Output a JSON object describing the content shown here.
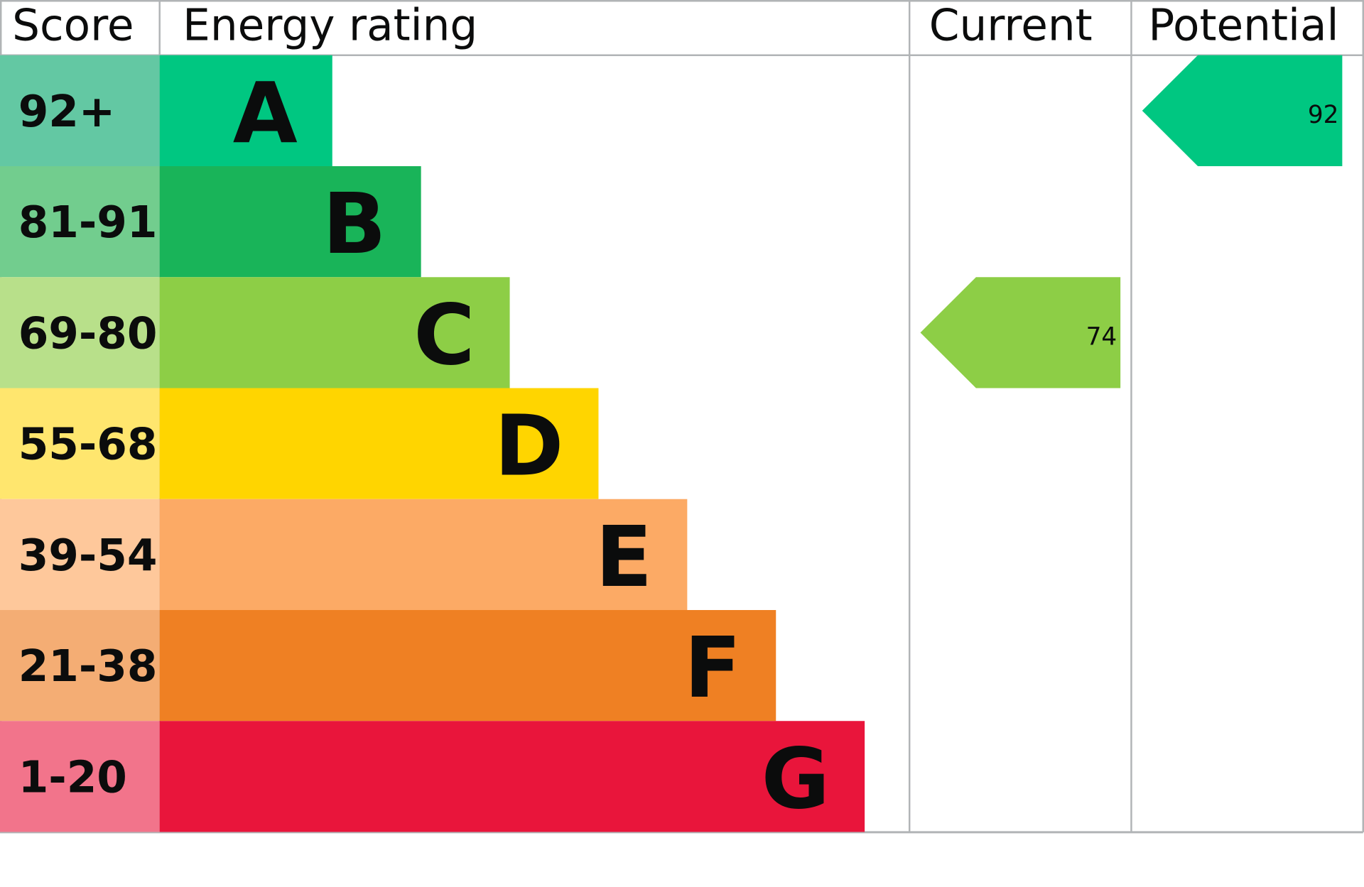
{
  "chart_data": {
    "type": "table",
    "headers": {
      "score": "Score",
      "rating": "Energy rating",
      "current": "Current",
      "potential": "Potential"
    },
    "bands": [
      {
        "letter": "A",
        "range": "92+",
        "color": "#00c781",
        "score_bg": "#63c8a3"
      },
      {
        "letter": "B",
        "range": "81-91",
        "color": "#19b459",
        "score_bg": "#72cd8e"
      },
      {
        "letter": "C",
        "range": "69-80",
        "color": "#8dce46",
        "score_bg": "#b8e08a"
      },
      {
        "letter": "D",
        "range": "55-68",
        "color": "#ffd500",
        "score_bg": "#ffe66e"
      },
      {
        "letter": "E",
        "range": "39-54",
        "color": "#fcaa65",
        "score_bg": "#fec89b"
      },
      {
        "letter": "F",
        "range": "21-38",
        "color": "#ef8023",
        "score_bg": "#f4ad74"
      },
      {
        "letter": "G",
        "range": "1-20",
        "color": "#e9153b",
        "score_bg": "#f2748b"
      }
    ],
    "current": {
      "value": "74",
      "band": "C",
      "color": "#8dce46"
    },
    "potential": {
      "value": "92",
      "band": "A",
      "color": "#00c781"
    }
  }
}
